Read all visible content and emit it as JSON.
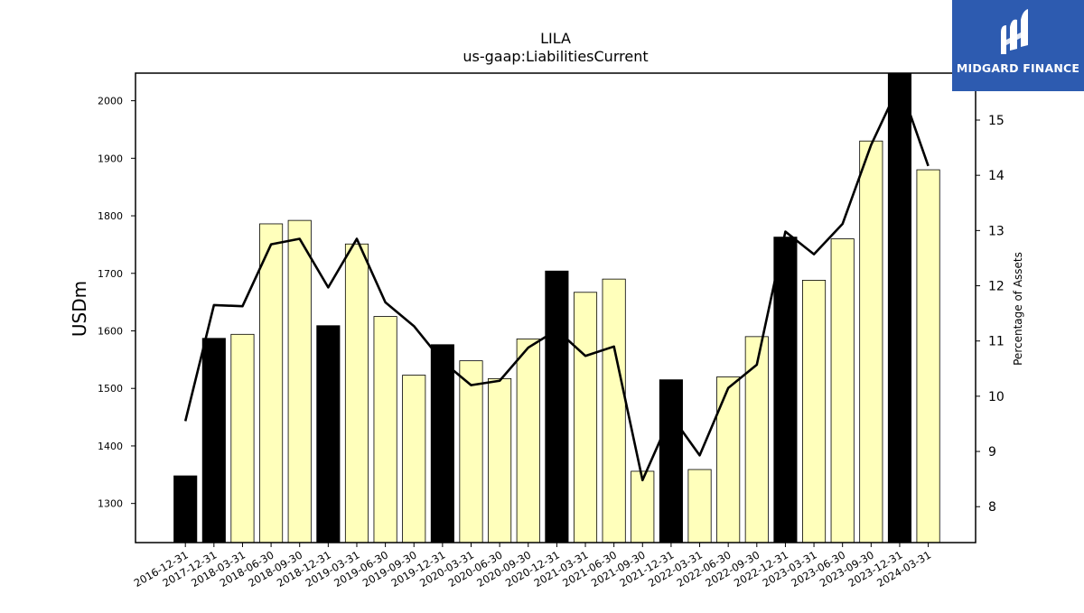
{
  "chart_data": {
    "type": "bar",
    "title": "LILA",
    "subtitle": "us-gaap:LiabilitiesCurrent",
    "ylabel": "USDm",
    "y2label": "Percentage of Assets",
    "ylim": [
      1232,
      2048
    ],
    "y2lim": [
      7.35,
      15.85
    ],
    "yticks": [
      1300,
      1400,
      1500,
      1600,
      1700,
      1800,
      1900,
      2000
    ],
    "y2ticks": [
      8,
      9,
      10,
      11,
      12,
      13,
      14,
      15
    ],
    "categories": [
      "2016-12-31",
      "2017-12-31",
      "2018-03-31",
      "2018-06-30",
      "2018-09-30",
      "2018-12-31",
      "2019-03-31",
      "2019-06-30",
      "2019-09-30",
      "2019-12-31",
      "2020-03-31",
      "2020-06-30",
      "2020-09-30",
      "2020-12-31",
      "2021-03-31",
      "2021-06-30",
      "2021-09-30",
      "2021-12-31",
      "2022-03-31",
      "2022-06-30",
      "2022-09-30",
      "2022-12-31",
      "2023-03-31",
      "2023-06-30",
      "2023-09-30",
      "2023-12-31",
      "2024-03-31"
    ],
    "series": [
      {
        "type": "bar",
        "values": [
          1348,
          1587,
          1594,
          1786,
          1792,
          1609,
          1751,
          1625,
          1523,
          1576,
          1548,
          1517,
          1586,
          1704,
          1667,
          1690,
          1356,
          1515,
          1359,
          1520,
          1590,
          1763,
          1688,
          1760,
          1930,
          2050,
          1880
        ]
      },
      {
        "type": "line",
        "axis": "right",
        "values": [
          9.55,
          11.65,
          11.63,
          12.75,
          12.85,
          11.97,
          12.85,
          11.7,
          11.27,
          10.63,
          10.2,
          10.28,
          10.88,
          11.2,
          10.73,
          10.9,
          8.48,
          9.65,
          8.93,
          10.15,
          10.57,
          12.98,
          12.57,
          13.12,
          14.55,
          15.65,
          14.17
        ]
      }
    ],
    "bar_colors": {
      "year_end": "#000000",
      "quarter": "#ffffbb"
    },
    "year_end_flags": [
      true,
      true,
      false,
      false,
      false,
      true,
      false,
      false,
      false,
      true,
      false,
      false,
      false,
      true,
      false,
      false,
      false,
      true,
      false,
      false,
      false,
      true,
      false,
      false,
      false,
      true,
      false
    ],
    "line_color": "#000000",
    "grid": false
  },
  "logo": {
    "text": "MIDGARD FINANCE",
    "icon": "midgard-m-logo-icon",
    "bg": "#2d5bb0"
  }
}
